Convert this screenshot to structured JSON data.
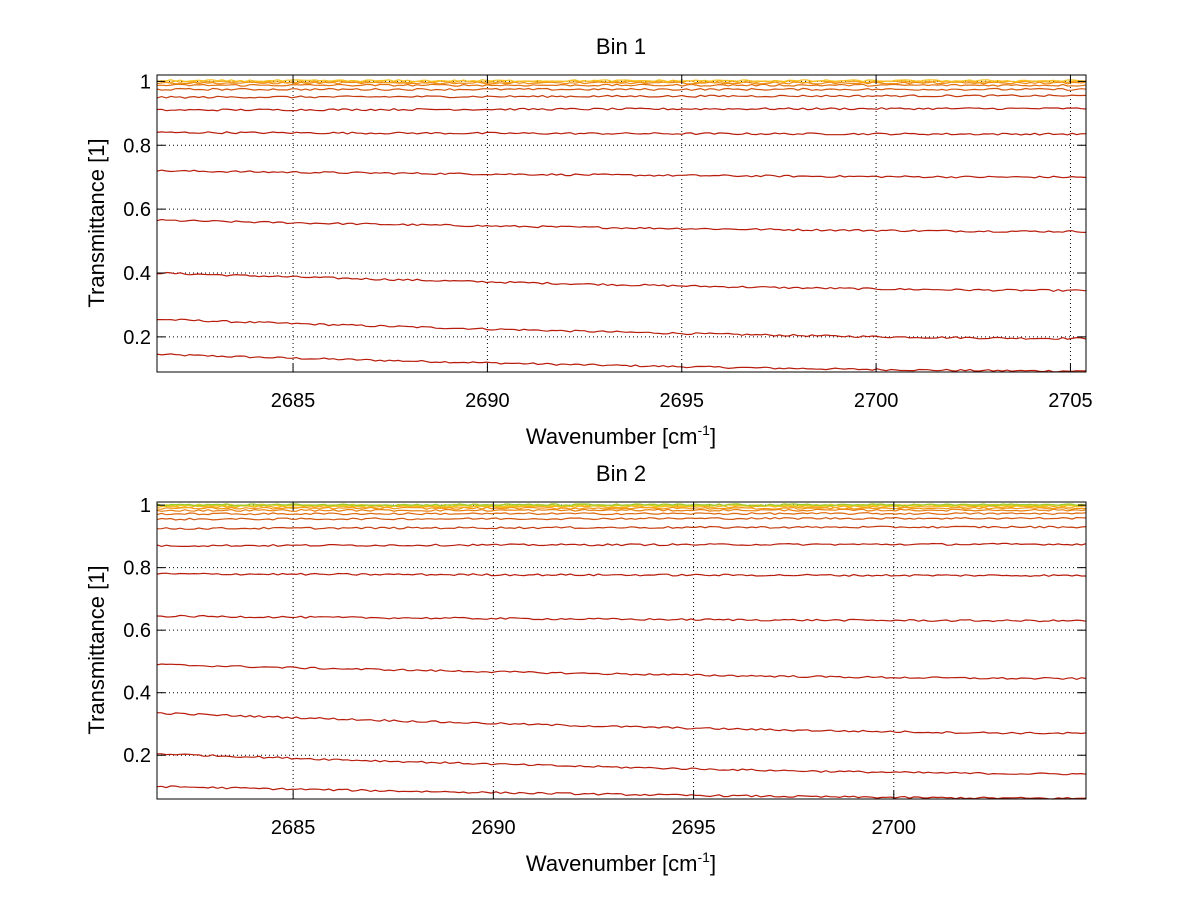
{
  "chart_data": [
    {
      "type": "line",
      "title": "Bin 1",
      "xlabel": "Wavenumber [cm",
      "xlabel_sup": "-1",
      "xlabel_end": "]",
      "ylabel": "Transmittance [1]",
      "xlim": [
        2681.5,
        2705.4
      ],
      "ylim": [
        0.09,
        1.02
      ],
      "xticks": [
        2685,
        2690,
        2695,
        2700,
        2705
      ],
      "xtick_labels": [
        "2685",
        "2690",
        "2695",
        "2700",
        "2705"
      ],
      "yticks": [
        0.2,
        0.4,
        0.6,
        0.8,
        1
      ],
      "ytick_labels": [
        "0.2",
        "0.4",
        "0.6",
        "0.8",
        "1"
      ],
      "grid": true,
      "series_note": "Family of transmittance spectra; each trace given by start and end transmittance",
      "series": [
        {
          "name": "trace 1",
          "start": 0.145,
          "end": 0.093,
          "color": "#b81c0c"
        },
        {
          "name": "trace 2",
          "start": 0.255,
          "end": 0.195,
          "color": "#b81c0c"
        },
        {
          "name": "trace 3",
          "start": 0.4,
          "end": 0.345,
          "color": "#b81c0c"
        },
        {
          "name": "trace 4",
          "start": 0.565,
          "end": 0.53,
          "color": "#b81c0c"
        },
        {
          "name": "trace 5",
          "start": 0.72,
          "end": 0.7,
          "color": "#b81c0c"
        },
        {
          "name": "trace 6",
          "start": 0.84,
          "end": 0.835,
          "color": "#b81c0c"
        },
        {
          "name": "trace 7",
          "start": 0.91,
          "end": 0.915,
          "color": "#b81c0c"
        },
        {
          "name": "trace 8",
          "start": 0.95,
          "end": 0.955,
          "color": "#c43a0e"
        },
        {
          "name": "trace 9",
          "start": 0.975,
          "end": 0.975,
          "color": "#d2560f"
        },
        {
          "name": "trace 10",
          "start": 0.988,
          "end": 0.988,
          "color": "#e07010"
        },
        {
          "name": "trace 11",
          "start": 0.995,
          "end": 0.995,
          "color": "#ef8a12"
        },
        {
          "name": "trace 12",
          "start": 0.999,
          "end": 0.999,
          "color": "#f6a616"
        },
        {
          "name": "trace 13",
          "start": 1.002,
          "end": 1.002,
          "color": "#f7c21d"
        }
      ]
    },
    {
      "type": "line",
      "title": "Bin 2",
      "xlabel": "Wavenumber [cm",
      "xlabel_sup": "-1",
      "xlabel_end": "]",
      "ylabel": "Transmittance [1]",
      "xlim": [
        2681.6,
        2704.8
      ],
      "ylim": [
        0.06,
        1.01
      ],
      "xticks": [
        2685,
        2690,
        2695,
        2700
      ],
      "xtick_labels": [
        "2685",
        "2690",
        "2695",
        "2700"
      ],
      "yticks": [
        0.2,
        0.4,
        0.6,
        0.8,
        1
      ],
      "ytick_labels": [
        "0.2",
        "0.4",
        "0.6",
        "0.8",
        "1"
      ],
      "grid": true,
      "series_note": "Family of transmittance spectra; each trace given by start and end transmittance",
      "series": [
        {
          "name": "trace 1",
          "start": 0.1,
          "end": 0.062,
          "color": "#b81c0c"
        },
        {
          "name": "trace 2",
          "start": 0.205,
          "end": 0.14,
          "color": "#b81c0c"
        },
        {
          "name": "trace 3",
          "start": 0.335,
          "end": 0.27,
          "color": "#b81c0c"
        },
        {
          "name": "trace 4",
          "start": 0.49,
          "end": 0.445,
          "color": "#b81c0c"
        },
        {
          "name": "trace 5",
          "start": 0.645,
          "end": 0.63,
          "color": "#b81c0c"
        },
        {
          "name": "trace 6",
          "start": 0.78,
          "end": 0.775,
          "color": "#b81c0c"
        },
        {
          "name": "trace 7",
          "start": 0.87,
          "end": 0.875,
          "color": "#b81c0c"
        },
        {
          "name": "trace 8",
          "start": 0.925,
          "end": 0.93,
          "color": "#c43a0e"
        },
        {
          "name": "trace 9",
          "start": 0.955,
          "end": 0.958,
          "color": "#d2560f"
        },
        {
          "name": "trace 10",
          "start": 0.972,
          "end": 0.973,
          "color": "#dd6a10"
        },
        {
          "name": "trace 11",
          "start": 0.983,
          "end": 0.984,
          "color": "#e88011"
        },
        {
          "name": "trace 12",
          "start": 0.99,
          "end": 0.99,
          "color": "#f09514"
        },
        {
          "name": "trace 13",
          "start": 0.995,
          "end": 0.995,
          "color": "#f5ab17"
        },
        {
          "name": "trace 14",
          "start": 0.998,
          "end": 0.998,
          "color": "#f5c21d"
        },
        {
          "name": "trace 15",
          "start": 1.0,
          "end": 1.0,
          "color": "#d8d023"
        },
        {
          "name": "trace 16",
          "start": 1.001,
          "end": 1.001,
          "color": "#9ccb2b"
        }
      ]
    }
  ]
}
